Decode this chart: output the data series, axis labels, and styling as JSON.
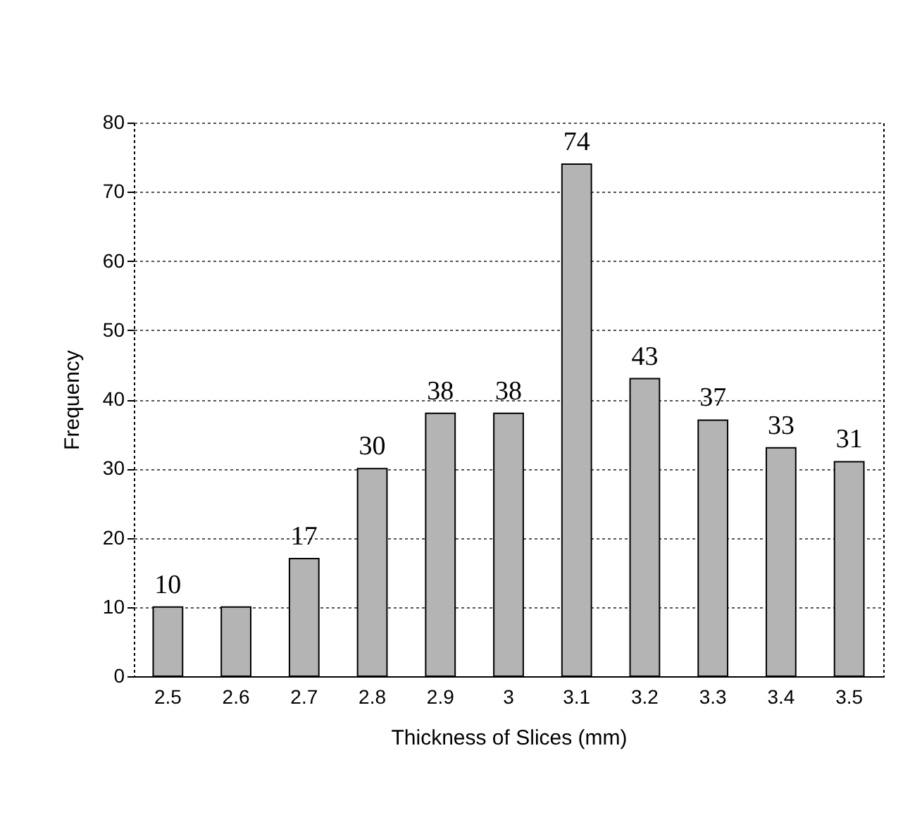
{
  "chart_data": {
    "type": "bar",
    "xlabel": "Thickness of Slices (mm)",
    "ylabel": "Frequency",
    "categories": [
      "2.5",
      "2.6",
      "2.7",
      "2.8",
      "2.9",
      "3",
      "3.1",
      "3.2",
      "3.3",
      "3.4",
      "3.5"
    ],
    "values": [
      10,
      10,
      17,
      30,
      38,
      38,
      74,
      43,
      37,
      33,
      31
    ],
    "value_labels": [
      "10",
      null,
      "17",
      "30",
      "38",
      "38",
      "74",
      "43",
      "37",
      "33",
      "31"
    ],
    "color": "#b4b4b4",
    "ylim": [
      0,
      80
    ],
    "yticks": [
      0,
      10,
      20,
      30,
      40,
      50,
      60,
      70,
      80
    ],
    "grid": "y"
  }
}
